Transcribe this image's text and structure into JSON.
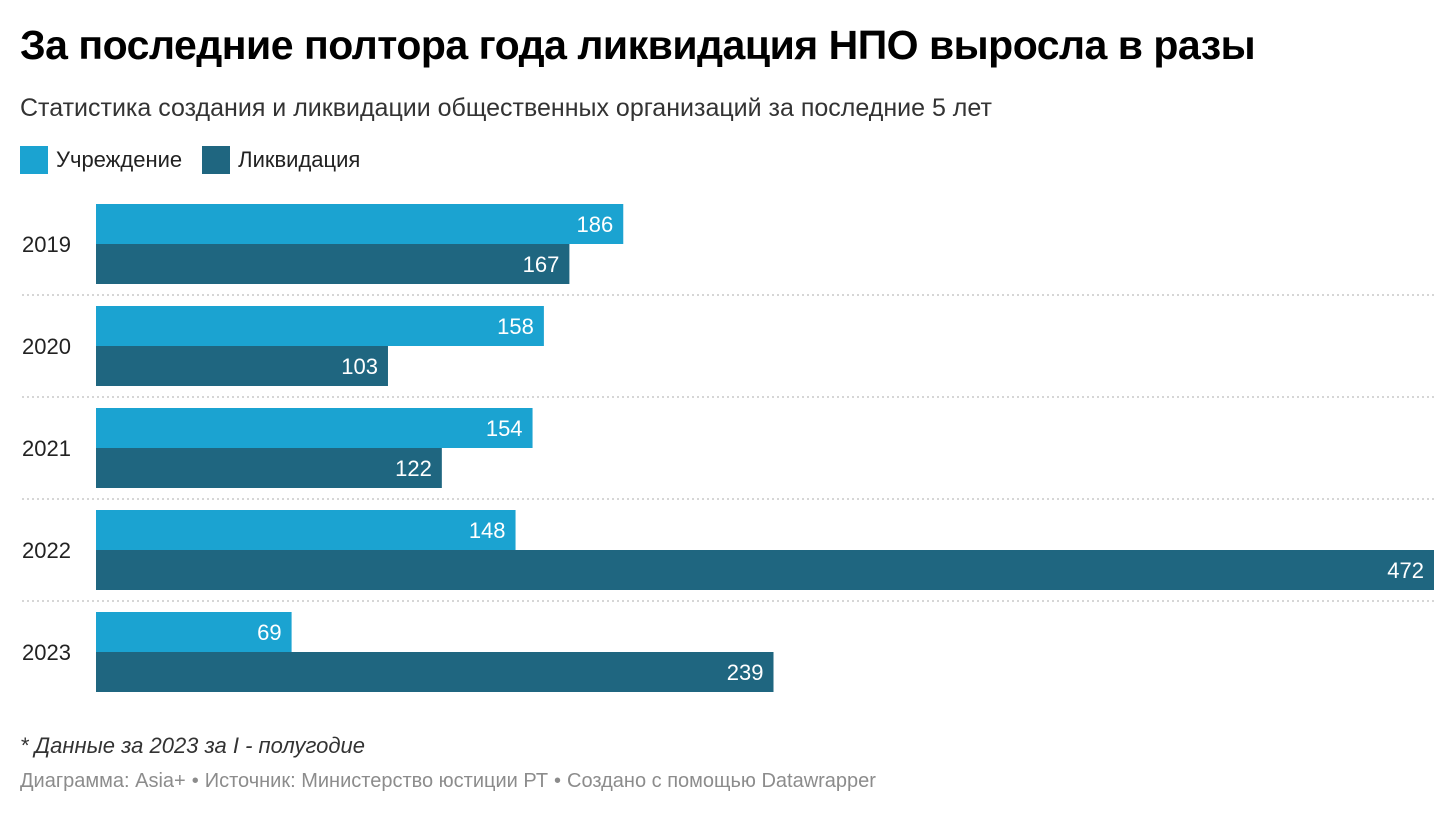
{
  "title": "За последние полтора года ликвидация НПО выросла в разы",
  "subtitle": "Статистика создания и ликвидации общественных организаций за последние 5 лет",
  "note": "* Данные за 2023 за I - полугодие",
  "footer": {
    "chart_by": "Диаграмма: Asia+",
    "source": "Источник: Министерство юстиции РТ",
    "created_with": "Создано с помощью Datawrapper",
    "separator": "•"
  },
  "colors": {
    "established": "#1ba3d1",
    "liquidation": "#1f6680"
  },
  "chart_data": {
    "type": "bar",
    "orientation": "horizontal",
    "categories": [
      "2019",
      "2020",
      "2021",
      "2022",
      "2023"
    ],
    "series": [
      {
        "name": "Учреждение",
        "values": [
          186,
          158,
          154,
          148,
          69
        ]
      },
      {
        "name": "Ликвидация",
        "values": [
          167,
          103,
          122,
          472,
          239
        ]
      }
    ],
    "xlim": [
      0,
      472
    ],
    "legend": "top-left",
    "grid": false
  }
}
